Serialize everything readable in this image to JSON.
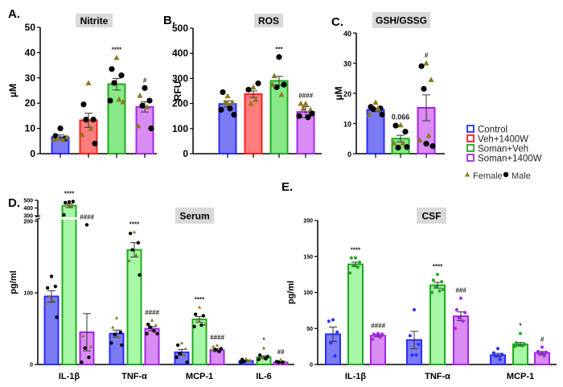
{
  "colors": {
    "control": {
      "fill": "#7b7cf4",
      "stroke": "#2a2cff"
    },
    "veh1400w": {
      "fill": "#ff7d7d",
      "stroke": "#ff1f1f"
    },
    "somanveh": {
      "fill": "#86e886",
      "stroke": "#22a822"
    },
    "somanveh_light": {
      "fill": "#a6f7a6",
      "stroke": "#22a822"
    },
    "soman1400w": {
      "fill": "#d98cf2",
      "stroke": "#a526e8"
    },
    "female": "#8a7a1c",
    "male": "#000000",
    "title_box": "#d9d9d9"
  },
  "legend": {
    "items": [
      {
        "key": "control",
        "label": "Control"
      },
      {
        "key": "veh1400w",
        "label": "Veh+1400W"
      },
      {
        "key": "somanveh",
        "label": "Soman+Veh"
      },
      {
        "key": "soman1400w",
        "label": "Soman+1400W"
      }
    ],
    "female_label": "Female",
    "male_label": "Male"
  },
  "chart_data": [
    {
      "panel": "A.",
      "type": "bar",
      "title": "Nitrite",
      "ylabel": "µM",
      "ylim": [
        0,
        50
      ],
      "yticks": [
        0,
        10,
        20,
        30,
        40,
        50
      ],
      "groups": [
        {
          "key": "control",
          "mean": 6.5,
          "sem": 0.9,
          "annot": "",
          "points": [
            [
              10,
              "m"
            ],
            [
              7,
              "m"
            ],
            [
              6,
              "m"
            ],
            [
              6,
              "f"
            ],
            [
              5.5,
              "f"
            ],
            [
              5.5,
              "f"
            ],
            [
              6.5,
              "f"
            ]
          ]
        },
        {
          "key": "veh1400w",
          "mean": 13.2,
          "sem": 2.8,
          "annot": "",
          "points": [
            [
              28,
              "f"
            ],
            [
              19.5,
              "m"
            ],
            [
              13.5,
              "m"
            ],
            [
              13.5,
              "m"
            ],
            [
              10,
              "f"
            ],
            [
              7.5,
              "f"
            ],
            [
              4,
              "m"
            ]
          ]
        },
        {
          "key": "somanveh",
          "mean": 27.5,
          "sem": 2.3,
          "annot": "****",
          "points": [
            [
              38,
              "f"
            ],
            [
              33.5,
              "m"
            ],
            [
              31,
              "m"
            ],
            [
              28,
              "m"
            ],
            [
              21.5,
              "f"
            ],
            [
              21,
              "m"
            ],
            [
              20.5,
              "f"
            ]
          ]
        },
        {
          "key": "soman1400w",
          "mean": 18.5,
          "sem": 2.0,
          "annot": "#",
          "points": [
            [
              26,
              "m"
            ],
            [
              23,
              "f"
            ],
            [
              21,
              "m"
            ],
            [
              19,
              "m"
            ],
            [
              18.5,
              "f"
            ],
            [
              11,
              "f"
            ],
            [
              10,
              "m"
            ]
          ]
        }
      ]
    },
    {
      "panel": "B.",
      "type": "bar",
      "title": "ROS",
      "ylabel": "RFU",
      "ylim": [
        0,
        500
      ],
      "yticks": [
        0,
        100,
        200,
        300,
        400,
        500
      ],
      "groups": [
        {
          "key": "control",
          "mean": 198,
          "sem": 12,
          "annot": "",
          "points": [
            [
              230,
              "f"
            ],
            [
              245,
              "m"
            ],
            [
              205,
              "f"
            ],
            [
              205,
              "f"
            ],
            [
              180,
              "m"
            ],
            [
              175,
              "m"
            ],
            [
              155,
              "m"
            ],
            [
              200,
              "f"
            ]
          ]
        },
        {
          "key": "veh1400w",
          "mean": 237,
          "sem": 13,
          "annot": "",
          "points": [
            [
              265,
              "f"
            ],
            [
              255,
              "m"
            ],
            [
              280,
              "m"
            ],
            [
              200,
              "f"
            ],
            [
              215,
              "f"
            ]
          ]
        },
        {
          "key": "somanveh",
          "mean": 290,
          "sem": 18,
          "annot": "***",
          "points": [
            [
              385,
              "m"
            ],
            [
              310,
              "f"
            ],
            [
              275,
              "m"
            ],
            [
              265,
              "m"
            ],
            [
              235,
              "f"
            ],
            [
              275,
              "f"
            ]
          ]
        },
        {
          "key": "soman1400w",
          "mean": 166,
          "sem": 22,
          "annot": "####",
          "points": [
            [
              200,
              "f"
            ],
            [
              200,
              "f"
            ],
            [
              175,
              "f"
            ],
            [
              180,
              "f"
            ],
            [
              145,
              "m"
            ],
            [
              150,
              "m"
            ],
            [
              160,
              "m"
            ]
          ]
        }
      ]
    },
    {
      "panel": "C.",
      "type": "bar",
      "title": "GSH/GSSG",
      "ylabel": "µM",
      "ylim": [
        0,
        40
      ],
      "yticks": [
        0,
        10,
        20,
        30,
        40
      ],
      "groups": [
        {
          "key": "control",
          "mean": 14.5,
          "sem": 0.6,
          "annot": "",
          "points": [
            [
              17,
              "f"
            ],
            [
              15.5,
              "m"
            ],
            [
              15,
              "m"
            ],
            [
              14.8,
              "m"
            ],
            [
              15,
              "f"
            ],
            [
              13,
              "f"
            ],
            [
              13,
              "m"
            ]
          ]
        },
        {
          "key": "somanveh",
          "mean": 5.0,
          "sem": 1.1,
          "annot": "0.066",
          "points": [
            [
              9.5,
              "f"
            ],
            [
              9.3,
              "m"
            ],
            [
              7.3,
              "m"
            ],
            [
              2,
              "m"
            ],
            [
              3.5,
              "f"
            ],
            [
              3.5,
              "f"
            ],
            [
              2.2,
              "m"
            ]
          ]
        },
        {
          "key": "soman1400w",
          "mean": 15.2,
          "sem": 4.3,
          "annot": "#",
          "points": [
            [
              30,
              "f"
            ],
            [
              29,
              "m"
            ],
            [
              24.5,
              "f"
            ],
            [
              21.5,
              "m"
            ],
            [
              6,
              "f"
            ],
            [
              4.5,
              "f"
            ],
            [
              2.5,
              "m"
            ],
            [
              3.3,
              "m"
            ]
          ]
        }
      ]
    },
    {
      "panel": "D.",
      "type": "bar",
      "title": "Serum",
      "ylabel": "pg/ml",
      "ylim": [
        0,
        500
      ],
      "yticks": [
        0,
        100,
        200,
        300,
        400,
        500
      ],
      "axis_break": [
        200,
        300
      ],
      "categories": [
        "IL-1β",
        "TNF-α",
        "MCP-1",
        "IL-6"
      ],
      "series_keys": [
        "control",
        "somanveh_light",
        "soman1400w"
      ],
      "groups": [
        [
          {
            "mean": 95,
            "sem": 8,
            "annot": "",
            "points": [
              [
                123,
                "m"
              ],
              [
                107,
                "m"
              ],
              [
                109,
                "m"
              ],
              [
                95,
                "f"
              ],
              [
                90,
                "f"
              ],
              [
                85,
                "f"
              ],
              [
                66,
                "m"
              ]
            ]
          },
          {
            "mean": 430,
            "sem": 25,
            "annot": "****",
            "points": [
              [
                480,
                "m"
              ],
              [
                470,
                "m"
              ],
              [
                485,
                "m"
              ],
              [
                440,
                "f"
              ],
              [
                430,
                "f"
              ],
              [
                310,
                "m"
              ]
            ]
          },
          {
            "mean": 45,
            "sem": 26,
            "annot": "####",
            "points": [
              [
                195,
                "m"
              ],
              [
                40,
                "f"
              ],
              [
                25,
                "f"
              ],
              [
                23,
                "m"
              ],
              [
                10,
                "m"
              ],
              [
                3,
                "m"
              ]
            ]
          }
        ],
        [
          {
            "mean": 43,
            "sem": 5,
            "annot": "",
            "points": [
              [
                65,
                "f"
              ],
              [
                52,
                "f"
              ],
              [
                45,
                "m"
              ],
              [
                42,
                "m"
              ],
              [
                38,
                "f"
              ],
              [
                30,
                "m"
              ],
              [
                27,
                "m"
              ]
            ]
          },
          {
            "mean": 160,
            "sem": 10,
            "annot": "****",
            "points": [
              [
                185,
                "f"
              ],
              [
                183,
                "m"
              ],
              [
                170,
                "m"
              ],
              [
                160,
                "m"
              ],
              [
                153,
                "f"
              ],
              [
                145,
                "f"
              ],
              [
                125,
                "m"
              ]
            ]
          },
          {
            "mean": 50,
            "sem": 3,
            "annot": "####",
            "points": [
              [
                62,
                "f"
              ],
              [
                56,
                "m"
              ],
              [
                55,
                "f"
              ],
              [
                52,
                "m"
              ],
              [
                47,
                "m"
              ],
              [
                43,
                "m"
              ],
              [
                43,
                "m"
              ]
            ]
          }
        ],
        [
          {
            "mean": 17,
            "sem": 4,
            "annot": "",
            "points": [
              [
                30,
                "f"
              ],
              [
                27,
                "m"
              ],
              [
                22,
                "f"
              ],
              [
                15,
                "m"
              ],
              [
                13,
                "f"
              ],
              [
                10,
                "m"
              ],
              [
                3,
                "m"
              ]
            ]
          },
          {
            "mean": 63,
            "sem": 4,
            "annot": "****",
            "points": [
              [
                80,
                "f"
              ],
              [
                70,
                "m"
              ],
              [
                68,
                "m"
              ],
              [
                63,
                "f"
              ],
              [
                55,
                "m"
              ],
              [
                53,
                "m"
              ],
              [
                56,
                "f"
              ]
            ]
          },
          {
            "mean": 20,
            "sem": 2,
            "annot": "####",
            "points": [
              [
                27,
                "f"
              ],
              [
                25,
                "f"
              ],
              [
                22,
                "m"
              ],
              [
                21,
                "m"
              ],
              [
                18,
                "m"
              ],
              [
                20,
                "f"
              ]
            ]
          }
        ],
        [
          {
            "mean": 5,
            "sem": 1,
            "annot": "",
            "points": [
              [
                8,
                "f"
              ],
              [
                7,
                "m"
              ],
              [
                6,
                "f"
              ],
              [
                4,
                "m"
              ],
              [
                5,
                "f"
              ],
              [
                3,
                "m"
              ]
            ]
          },
          {
            "mean": 10,
            "sem": 2,
            "annot": "*",
            "points": [
              [
                23,
                "f"
              ],
              [
                13,
                "m"
              ],
              [
                11,
                "m"
              ],
              [
                10,
                "f"
              ],
              [
                8,
                "m"
              ],
              [
                7,
                "m"
              ]
            ]
          },
          {
            "mean": 3,
            "sem": 0.8,
            "annot": "##",
            "points": [
              [
                7,
                "f"
              ],
              [
                4,
                "m"
              ],
              [
                4,
                "f"
              ],
              [
                3,
                "m"
              ],
              [
                3,
                "m"
              ]
            ]
          }
        ]
      ]
    },
    {
      "panel": "E.",
      "type": "bar",
      "title": "CSF",
      "ylabel": "pg/ml",
      "ylim": [
        0,
        200
      ],
      "yticks": [
        0,
        50,
        100,
        150,
        200
      ],
      "categories": [
        "IL-1β",
        "TNF-α",
        "MCP-1"
      ],
      "series_keys": [
        "control",
        "somanveh_light",
        "soman1400w"
      ],
      "groups": [
        [
          {
            "mean": 42,
            "sem": 10,
            "annot": "",
            "points": [
              62,
              60,
              45,
              30,
              12
            ]
          },
          {
            "mean": 139,
            "sem": 3,
            "annot": "****",
            "points": [
              148,
              148,
              142,
              138,
              135,
              127
            ]
          },
          {
            "mean": 40,
            "sem": 1.5,
            "annot": "####",
            "points": [
              43,
              42,
              42,
              40,
              38,
              35
            ]
          }
        ],
        [
          {
            "mean": 34,
            "sem": 12,
            "annot": "",
            "points": [
              76,
              40,
              28,
              13,
              13
            ]
          },
          {
            "mean": 110,
            "sem": 4,
            "annot": "****",
            "points": [
              125,
              117,
              115,
              108,
              102,
              100,
              104
            ]
          },
          {
            "mean": 67,
            "sem": 6,
            "annot": "###",
            "points": [
              92,
              76,
              72,
              65,
              60,
              50
            ]
          }
        ],
        [
          {
            "mean": 13,
            "sem": 2.5,
            "annot": "",
            "points": [
              22,
              16,
              14,
              12,
              7
            ]
          },
          {
            "mean": 28,
            "sem": 2.5,
            "annot": "*",
            "points": [
              43,
              30,
              28,
              27,
              26,
              25
            ]
          },
          {
            "mean": 16,
            "sem": 2,
            "annot": "#",
            "points": [
              24,
              18,
              17,
              14,
              12
            ]
          }
        ]
      ]
    }
  ]
}
